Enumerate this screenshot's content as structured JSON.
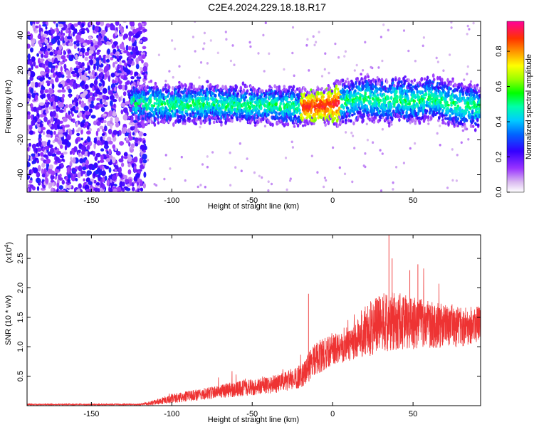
{
  "title": "C2E4.2024.229.18.18.R17",
  "chart_data": [
    {
      "type": "heatmap",
      "xlabel": "Height of straight line (km)",
      "ylabel": "Frequency (Hz)",
      "xlim": [
        -190,
        92
      ],
      "ylim": [
        -50,
        48
      ],
      "xticks": [
        -150,
        -100,
        -50,
        0,
        50
      ],
      "yticks": [
        -40,
        -20,
        0,
        20,
        40
      ],
      "colorbar": {
        "label": "Normalized spectral amplitude",
        "range": [
          0,
          0.97
        ],
        "ticks": [
          0.0,
          0.2,
          0.4,
          0.6,
          0.8
        ]
      },
      "description_points": {
        "noise_region_x": [
          -190,
          -120
        ],
        "ridge_center_x": [
          -120,
          -100,
          -80,
          -60,
          -40,
          -20,
          0,
          10,
          20,
          30,
          40,
          50,
          60,
          70,
          80,
          90
        ],
        "ridge_center_y": [
          1,
          0,
          1,
          0,
          0,
          -1,
          0,
          3,
          4,
          2,
          3,
          2,
          4,
          1,
          0,
          -1
        ]
      }
    },
    {
      "type": "line",
      "xlabel": "Height of straight line (km)",
      "ylabel": "SNR (10 * v/v)",
      "y_multiplier": "(x10",
      "y_multiplier_exp": "4",
      "y_multiplier_close": ")",
      "xlim": [
        -190,
        92
      ],
      "ylim": [
        0,
        2.9
      ],
      "xticks": [
        -150,
        -100,
        -50,
        0,
        50
      ],
      "yticks": [
        0.5,
        1.0,
        1.5,
        2.0,
        2.5
      ],
      "ytick_labels": [
        "0.5",
        "1.0",
        "1.5",
        "2.0",
        "2.5"
      ],
      "color": "#ee3333",
      "envelope_x": [
        -190,
        -120,
        -112,
        -100,
        -80,
        -60,
        -40,
        -30,
        -20,
        -15,
        -10,
        0,
        10,
        20,
        30,
        40,
        50,
        60,
        70,
        80,
        92
      ],
      "envelope_y": [
        0.02,
        0.02,
        0.05,
        0.12,
        0.2,
        0.28,
        0.35,
        0.4,
        0.5,
        0.65,
        0.8,
        0.95,
        1.05,
        1.25,
        1.4,
        1.45,
        1.4,
        1.38,
        1.35,
        1.35,
        1.4
      ],
      "envelope_amp": [
        0.01,
        0.01,
        0.04,
        0.08,
        0.1,
        0.13,
        0.15,
        0.17,
        0.2,
        0.25,
        0.3,
        0.25,
        0.3,
        0.45,
        0.5,
        0.5,
        0.45,
        0.4,
        0.38,
        0.35,
        0.3
      ],
      "spikes": [
        {
          "x": -15,
          "y": 1.9
        },
        {
          "x": 35,
          "y": 2.9
        },
        {
          "x": 53,
          "y": 2.4
        },
        {
          "x": 48,
          "y": 2.3
        },
        {
          "x": 37,
          "y": 2.5
        }
      ]
    }
  ]
}
